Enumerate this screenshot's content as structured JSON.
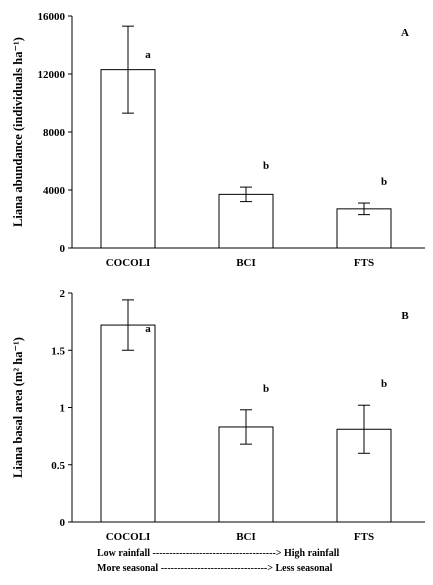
{
  "chart_data": [
    {
      "type": "bar",
      "panel_label": "A",
      "categories": [
        "COCOLI",
        "BCI",
        "FTS"
      ],
      "values": [
        12300,
        3700,
        2700
      ],
      "error_low": [
        9300,
        3200,
        2300
      ],
      "error_high": [
        15300,
        4200,
        3100
      ],
      "significance": [
        "a",
        "b",
        "b"
      ],
      "ylabel": "Liana abundance (individuals ha⁻¹)",
      "ylim": [
        0,
        16000
      ],
      "yticks": [
        0,
        4000,
        8000,
        12000,
        16000
      ],
      "ytick_labels": [
        "0",
        "4000",
        "8000",
        "12000",
        "16000"
      ],
      "grid": false,
      "bar_color": "#ffffff"
    },
    {
      "type": "bar",
      "panel_label": "B",
      "categories": [
        "COCOLI",
        "BCI",
        "FTS"
      ],
      "values": [
        1.72,
        0.83,
        0.81
      ],
      "error_low": [
        1.5,
        0.68,
        0.6
      ],
      "error_high": [
        1.94,
        0.98,
        1.02
      ],
      "significance": [
        "a",
        "b",
        "b"
      ],
      "ylabel": "Liana basal area (m² ha⁻¹)",
      "ylim": [
        0,
        2
      ],
      "yticks": [
        0,
        0.5,
        1,
        1.5,
        2
      ],
      "ytick_labels": [
        "0",
        "0.5",
        "1",
        "1.5",
        "2"
      ],
      "grid": false,
      "bar_color": "#ffffff"
    }
  ],
  "gradient": [
    "Low rainfall -------------------------------------> High rainfall",
    "More seasonal --------------------------------> Less seasonal"
  ]
}
